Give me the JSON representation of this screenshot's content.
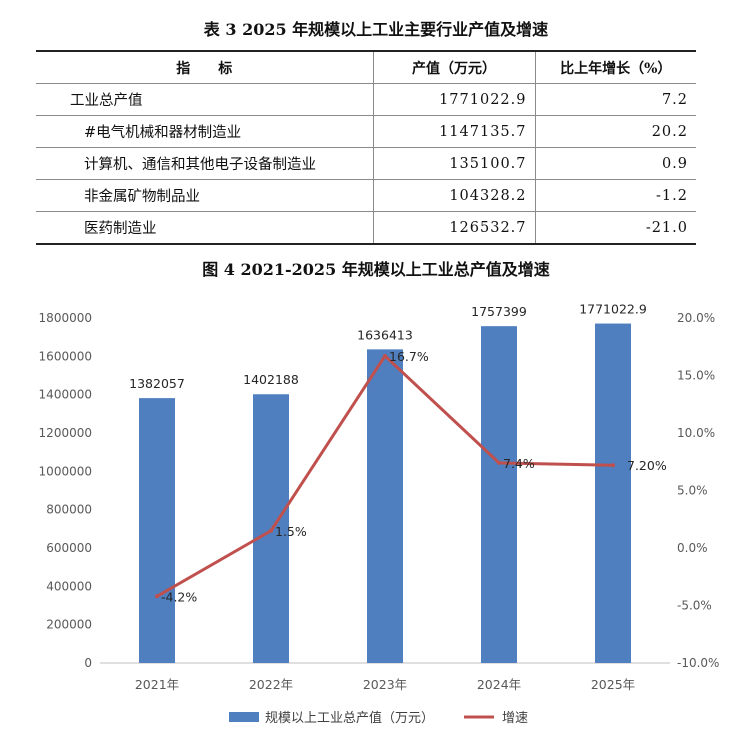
{
  "table": {
    "title": "表 3 2025 年规模以上工业主要行业产值及增速",
    "headers": [
      "指　　标",
      "产值（万元）",
      "比上年增长（%）"
    ],
    "rows": [
      {
        "name": "工业总产值",
        "value": "1771022.9",
        "growth": "7.2"
      },
      {
        "name": "#电气机械和器材制造业",
        "value": "1147135.7",
        "growth": "20.2"
      },
      {
        "name": "计算机、通信和其他电子设备制造业",
        "value": "135100.7",
        "growth": "0.9"
      },
      {
        "name": "非金属矿物制品业",
        "value": "104328.2",
        "growth": "-1.2"
      },
      {
        "name": "医药制造业",
        "value": "126532.7",
        "growth": "-21.0"
      }
    ]
  },
  "chart_data": {
    "type": "bar",
    "title": "图 4 2021-2025 年规模以上工业总产值及增速",
    "categories": [
      "2021年",
      "2022年",
      "2023年",
      "2024年",
      "2025年"
    ],
    "series": [
      {
        "name": "规模以上工业总产值（万元）",
        "type": "bar",
        "axis": "left",
        "values": [
          1382057,
          1402188,
          1636413,
          1757399,
          1771022.9
        ],
        "labels": [
          "1382057",
          "1402188",
          "1636413",
          "1757399",
          "1771022.9"
        ]
      },
      {
        "name": "增速",
        "type": "line",
        "axis": "right",
        "values": [
          -4.2,
          1.5,
          16.7,
          7.4,
          7.2
        ],
        "labels": [
          "-4.2%",
          "1.5%",
          "16.7%",
          "7.4%",
          "7.20%"
        ]
      }
    ],
    "ylim_left": [
      0,
      1800000
    ],
    "ylim_right": [
      -10,
      20
    ],
    "y_left_ticks": [
      "0",
      "200000",
      "400000",
      "600000",
      "800000",
      "1000000",
      "1200000",
      "1400000",
      "1600000",
      "1800000"
    ],
    "y_right_ticks": [
      "-10.0%",
      "-5.0%",
      "0.0%",
      "5.0%",
      "10.0%",
      "15.0%",
      "20.0%"
    ],
    "legend_position": "bottom",
    "grid": false,
    "colors": {
      "bar": "#4f7fbf",
      "line": "#c0504d"
    }
  }
}
